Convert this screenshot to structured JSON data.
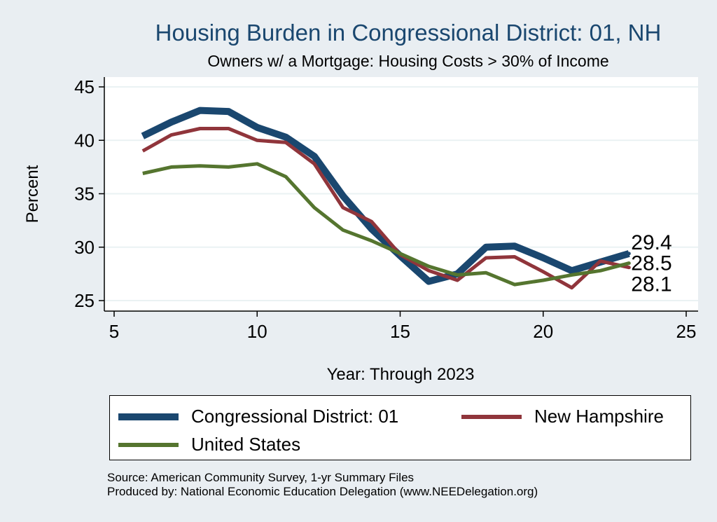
{
  "chart_data": {
    "type": "line",
    "title": "Housing Burden in Congressional District:  01, NH",
    "subtitle": "Owners w/ a Mortgage: Housing Costs > 30% of Income",
    "xlabel": "Year: Through 2023",
    "ylabel": "Percent",
    "xlim": [
      5,
      25
    ],
    "ylim": [
      24.5,
      46
    ],
    "xticks": [
      5,
      10,
      15,
      20,
      25
    ],
    "yticks": [
      25,
      30,
      35,
      40,
      45
    ],
    "grid": "horizontal",
    "legend_position": "bottom",
    "series": [
      {
        "name": "Congressional District:  01",
        "color": "#1a476f",
        "x": [
          6,
          7,
          8,
          9,
          10,
          11,
          12,
          13,
          14,
          15,
          16,
          17,
          18,
          19,
          20,
          21,
          22,
          23
        ],
        "values": [
          40.4,
          41.7,
          42.8,
          42.7,
          41.2,
          40.3,
          38.5,
          34.8,
          31.7,
          29.2,
          26.8,
          27.5,
          30.0,
          30.1,
          29.0,
          27.8,
          28.6,
          29.4
        ],
        "end_label": "29.4"
      },
      {
        "name": "New Hampshire",
        "color": "#90353b",
        "x": [
          6,
          7,
          8,
          9,
          10,
          11,
          12,
          13,
          14,
          15,
          16,
          17,
          18,
          19,
          20,
          21,
          22,
          23
        ],
        "values": [
          39.0,
          40.5,
          41.1,
          41.1,
          40.0,
          39.8,
          37.8,
          33.7,
          32.4,
          29.3,
          27.8,
          26.9,
          29.0,
          29.1,
          27.7,
          26.2,
          28.7,
          28.1
        ],
        "end_label": "28.1"
      },
      {
        "name": "United States",
        "color": "#55752f",
        "x": [
          6,
          7,
          8,
          9,
          10,
          11,
          12,
          13,
          14,
          15,
          16,
          17,
          18,
          19,
          20,
          21,
          22,
          23
        ],
        "values": [
          36.9,
          37.5,
          37.6,
          37.5,
          37.8,
          36.6,
          33.7,
          31.6,
          30.6,
          29.4,
          28.2,
          27.4,
          27.6,
          26.5,
          26.9,
          27.4,
          27.8,
          28.5
        ],
        "end_label": "28.5"
      }
    ]
  },
  "source_lines": [
    "Source: American Community Survey, 1-yr Summary Files",
    "Produced by: National Economic Education Delegation (www.NEEDelegation.org)"
  ]
}
